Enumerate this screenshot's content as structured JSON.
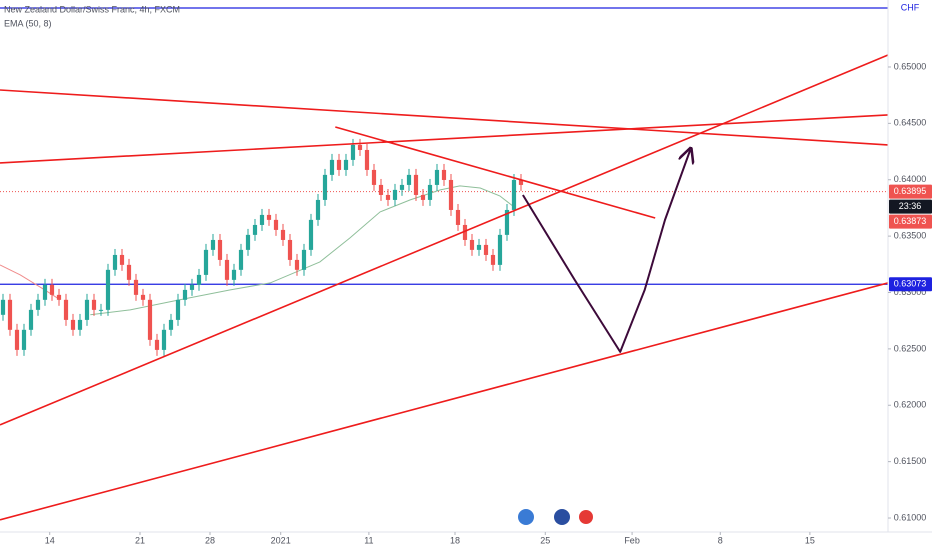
{
  "chart_data": {
    "type": "candlestick",
    "title": "New Zealand Dollar/Swiss Franc, 4h, FXCM",
    "indicator": "EMA (50, 8)",
    "up_color": "#26a69a",
    "down_color": "#ef5350",
    "candles": [
      [
        0.62802,
        0.62988,
        0.62749,
        0.62935
      ],
      [
        0.62935,
        0.62988,
        0.62616,
        0.62669
      ],
      [
        0.62669,
        0.62722,
        0.62438,
        0.62491
      ],
      [
        0.62491,
        0.62722,
        0.62438,
        0.62669
      ],
      [
        0.62669,
        0.62899,
        0.62616,
        0.62846
      ],
      [
        0.62846,
        0.62988,
        0.62793,
        0.62935
      ],
      [
        0.62935,
        0.63121,
        0.62882,
        0.63068
      ],
      [
        0.63068,
        0.63121,
        0.62926,
        0.62979
      ],
      [
        0.62979,
        0.63032,
        0.62882,
        0.62935
      ],
      [
        0.62935,
        0.62988,
        0.62704,
        0.62757
      ],
      [
        0.62757,
        0.6281,
        0.62616,
        0.62669
      ],
      [
        0.62669,
        0.6281,
        0.62616,
        0.62757
      ],
      [
        0.62757,
        0.62988,
        0.62704,
        0.62935
      ],
      [
        0.62935,
        0.62988,
        0.62793,
        0.62846
      ],
      [
        0.62846,
        0.62899,
        0.62793,
        0.62846
      ],
      [
        0.62846,
        0.63254,
        0.62793,
        0.63201
      ],
      [
        0.63201,
        0.63386,
        0.63148,
        0.63333
      ],
      [
        0.63333,
        0.63386,
        0.63192,
        0.63245
      ],
      [
        0.63245,
        0.63298,
        0.63059,
        0.63112
      ],
      [
        0.63112,
        0.63165,
        0.62926,
        0.62979
      ],
      [
        0.62979,
        0.63032,
        0.62882,
        0.62935
      ],
      [
        0.62935,
        0.62988,
        0.62527,
        0.6258
      ],
      [
        0.6258,
        0.62633,
        0.62438,
        0.62491
      ],
      [
        0.62491,
        0.62722,
        0.62438,
        0.62669
      ],
      [
        0.62669,
        0.6281,
        0.62616,
        0.62757
      ],
      [
        0.62757,
        0.62988,
        0.62704,
        0.62935
      ],
      [
        0.62935,
        0.63076,
        0.62882,
        0.63023
      ],
      [
        0.63023,
        0.63121,
        0.6297,
        0.63068
      ],
      [
        0.63068,
        0.63209,
        0.63015,
        0.63156
      ],
      [
        0.63156,
        0.63431,
        0.63103,
        0.63378
      ],
      [
        0.63378,
        0.63519,
        0.63325,
        0.63466
      ],
      [
        0.63466,
        0.63519,
        0.63236,
        0.63289
      ],
      [
        0.63289,
        0.63342,
        0.63059,
        0.63112
      ],
      [
        0.63112,
        0.63254,
        0.63059,
        0.63201
      ],
      [
        0.63201,
        0.63431,
        0.63148,
        0.63378
      ],
      [
        0.63378,
        0.63564,
        0.63325,
        0.63511
      ],
      [
        0.63511,
        0.63652,
        0.63458,
        0.63599
      ],
      [
        0.63599,
        0.63741,
        0.63546,
        0.63688
      ],
      [
        0.63688,
        0.63741,
        0.63591,
        0.63644
      ],
      [
        0.63644,
        0.63697,
        0.63502,
        0.63555
      ],
      [
        0.63555,
        0.63608,
        0.63413,
        0.63466
      ],
      [
        0.63466,
        0.63519,
        0.63236,
        0.63289
      ],
      [
        0.63289,
        0.63342,
        0.63148,
        0.63201
      ],
      [
        0.63201,
        0.63431,
        0.63148,
        0.63378
      ],
      [
        0.63378,
        0.63697,
        0.63325,
        0.63644
      ],
      [
        0.63644,
        0.63874,
        0.63591,
        0.63821
      ],
      [
        0.63821,
        0.64096,
        0.63768,
        0.64043
      ],
      [
        0.64043,
        0.64229,
        0.6399,
        0.64176
      ],
      [
        0.64176,
        0.64229,
        0.64034,
        0.64087
      ],
      [
        0.64087,
        0.64229,
        0.64034,
        0.64176
      ],
      [
        0.64176,
        0.64362,
        0.64123,
        0.64309
      ],
      [
        0.64309,
        0.64362,
        0.64211,
        0.64264
      ],
      [
        0.64264,
        0.64317,
        0.64034,
        0.64087
      ],
      [
        0.64087,
        0.6414,
        0.63901,
        0.63954
      ],
      [
        0.63954,
        0.64007,
        0.63812,
        0.63865
      ],
      [
        0.63865,
        0.63918,
        0.63768,
        0.63821
      ],
      [
        0.63821,
        0.63963,
        0.63768,
        0.6391
      ],
      [
        0.6391,
        0.64007,
        0.63857,
        0.63954
      ],
      [
        0.63954,
        0.64096,
        0.63901,
        0.64043
      ],
      [
        0.64043,
        0.64096,
        0.63812,
        0.63865
      ],
      [
        0.63865,
        0.63918,
        0.63768,
        0.63821
      ],
      [
        0.63821,
        0.64007,
        0.63768,
        0.63954
      ],
      [
        0.63954,
        0.6414,
        0.63901,
        0.64087
      ],
      [
        0.64087,
        0.6414,
        0.63945,
        0.63998
      ],
      [
        0.63998,
        0.64051,
        0.63679,
        0.63732
      ],
      [
        0.63732,
        0.63785,
        0.63546,
        0.63599
      ],
      [
        0.63599,
        0.63652,
        0.63413,
        0.63466
      ],
      [
        0.63466,
        0.63519,
        0.63325,
        0.63378
      ],
      [
        0.63378,
        0.63475,
        0.63325,
        0.63422
      ],
      [
        0.63422,
        0.63475,
        0.6328,
        0.63333
      ],
      [
        0.63333,
        0.63386,
        0.63192,
        0.63245
      ],
      [
        0.63245,
        0.63564,
        0.63192,
        0.63511
      ],
      [
        0.63511,
        0.63785,
        0.63458,
        0.63732
      ],
      [
        0.63732,
        0.64051,
        0.63679,
        0.63998
      ],
      [
        0.63998,
        0.64051,
        0.63901,
        0.63954
      ]
    ],
    "ema": [
      {
        "color": "#8fbf9a",
        "x": [
          12.9,
          18.6,
          25.7,
          32.9,
          38.6,
          45.7,
          50,
          54.3,
          58.6,
          62.9,
          65.7,
          68.6,
          71.4,
          73.6
        ],
        "values": [
          0.62802,
          0.62846,
          0.62935,
          0.63023,
          0.63085,
          0.63271,
          0.63484,
          0.63715,
          0.63821,
          0.6391,
          0.63945,
          0.63927,
          0.63857,
          0.6375
        ]
      },
      {
        "color": "#f08c8c",
        "x": [
          0,
          2.9,
          6.4,
          8.6
        ],
        "values": [
          0.63245,
          0.63156,
          0.63023,
          0.62935
        ]
      }
    ],
    "drawings": [
      {
        "color": "#ee1c1c",
        "x": [
          0,
          126.86
        ],
        "values": [
          0.64796,
          0.64309
        ]
      },
      {
        "color": "#ee1c1c",
        "x": [
          0,
          126.86
        ],
        "values": [
          0.64149,
          0.64575
        ]
      },
      {
        "color": "#ee1c1c",
        "x": [
          0,
          126.86
        ],
        "values": [
          0.61826,
          0.65106
        ]
      },
      {
        "color": "#ee1c1c",
        "x": [
          0,
          126.86
        ],
        "values": [
          0.60984,
          0.63085
        ]
      },
      {
        "color": "#ee1c1c",
        "x": [
          47.9,
          93.6
        ],
        "values": [
          0.64468,
          0.63661
        ]
      },
      {
        "color": "#3d0a3a",
        "arrow": true,
        "x": [
          74.7,
          82.1,
          88.6,
          92.1,
          95,
          98.6
        ],
        "values": [
          0.63865,
          0.63112,
          0.62473,
          0.63023,
          0.63644,
          0.64264
        ]
      }
    ],
    "hlines": [
      {
        "value": 0.63073,
        "color": "#1e22e0",
        "style": "solid"
      },
      {
        "value": 0.65523,
        "color": "#1e22e0",
        "style": "solid"
      },
      {
        "value": 0.63895,
        "color": "#ef5350",
        "style": "dotted"
      }
    ],
    "price_labels": [
      {
        "value": 0.63895,
        "label": "0.63895",
        "color": "#ef5350"
      },
      {
        "value": 0.63073,
        "label": "0.63073",
        "color": "#1e22e0"
      },
      {
        "value": 0.65523,
        "label": "CHF",
        "color": "#1e22e0"
      }
    ],
    "countdown": "23:36",
    "bid_label": "0.63873",
    "xlim": [
      0,
      126.86
    ],
    "ylim": [
      0.60876,
      0.65594
    ],
    "xticks": [
      {
        "value": 7.1,
        "label": "14"
      },
      {
        "value": 20,
        "label": "21"
      },
      {
        "value": 30,
        "label": "28"
      },
      {
        "value": 40.1,
        "label": "2021"
      },
      {
        "value": 52.7,
        "label": "11"
      },
      {
        "value": 65,
        "label": "18"
      },
      {
        "value": 77.9,
        "label": "25"
      },
      {
        "value": 90.3,
        "label": "Feb"
      },
      {
        "value": 102.9,
        "label": "8"
      },
      {
        "value": 115.7,
        "label": "15"
      }
    ],
    "yticks": [
      {
        "value": 0.61,
        "label": "0.61000"
      },
      {
        "value": 0.615,
        "label": "0.61500"
      },
      {
        "value": 0.62,
        "label": "0.62000"
      },
      {
        "value": 0.625,
        "label": "0.62500"
      },
      {
        "value": 0.63,
        "label": "0.63000"
      },
      {
        "value": 0.635,
        "label": "0.63500"
      },
      {
        "value": 0.64,
        "label": "0.64000"
      },
      {
        "value": 0.645,
        "label": "0.64500"
      },
      {
        "value": 0.65,
        "label": "0.65000"
      }
    ],
    "grid": false
  }
}
